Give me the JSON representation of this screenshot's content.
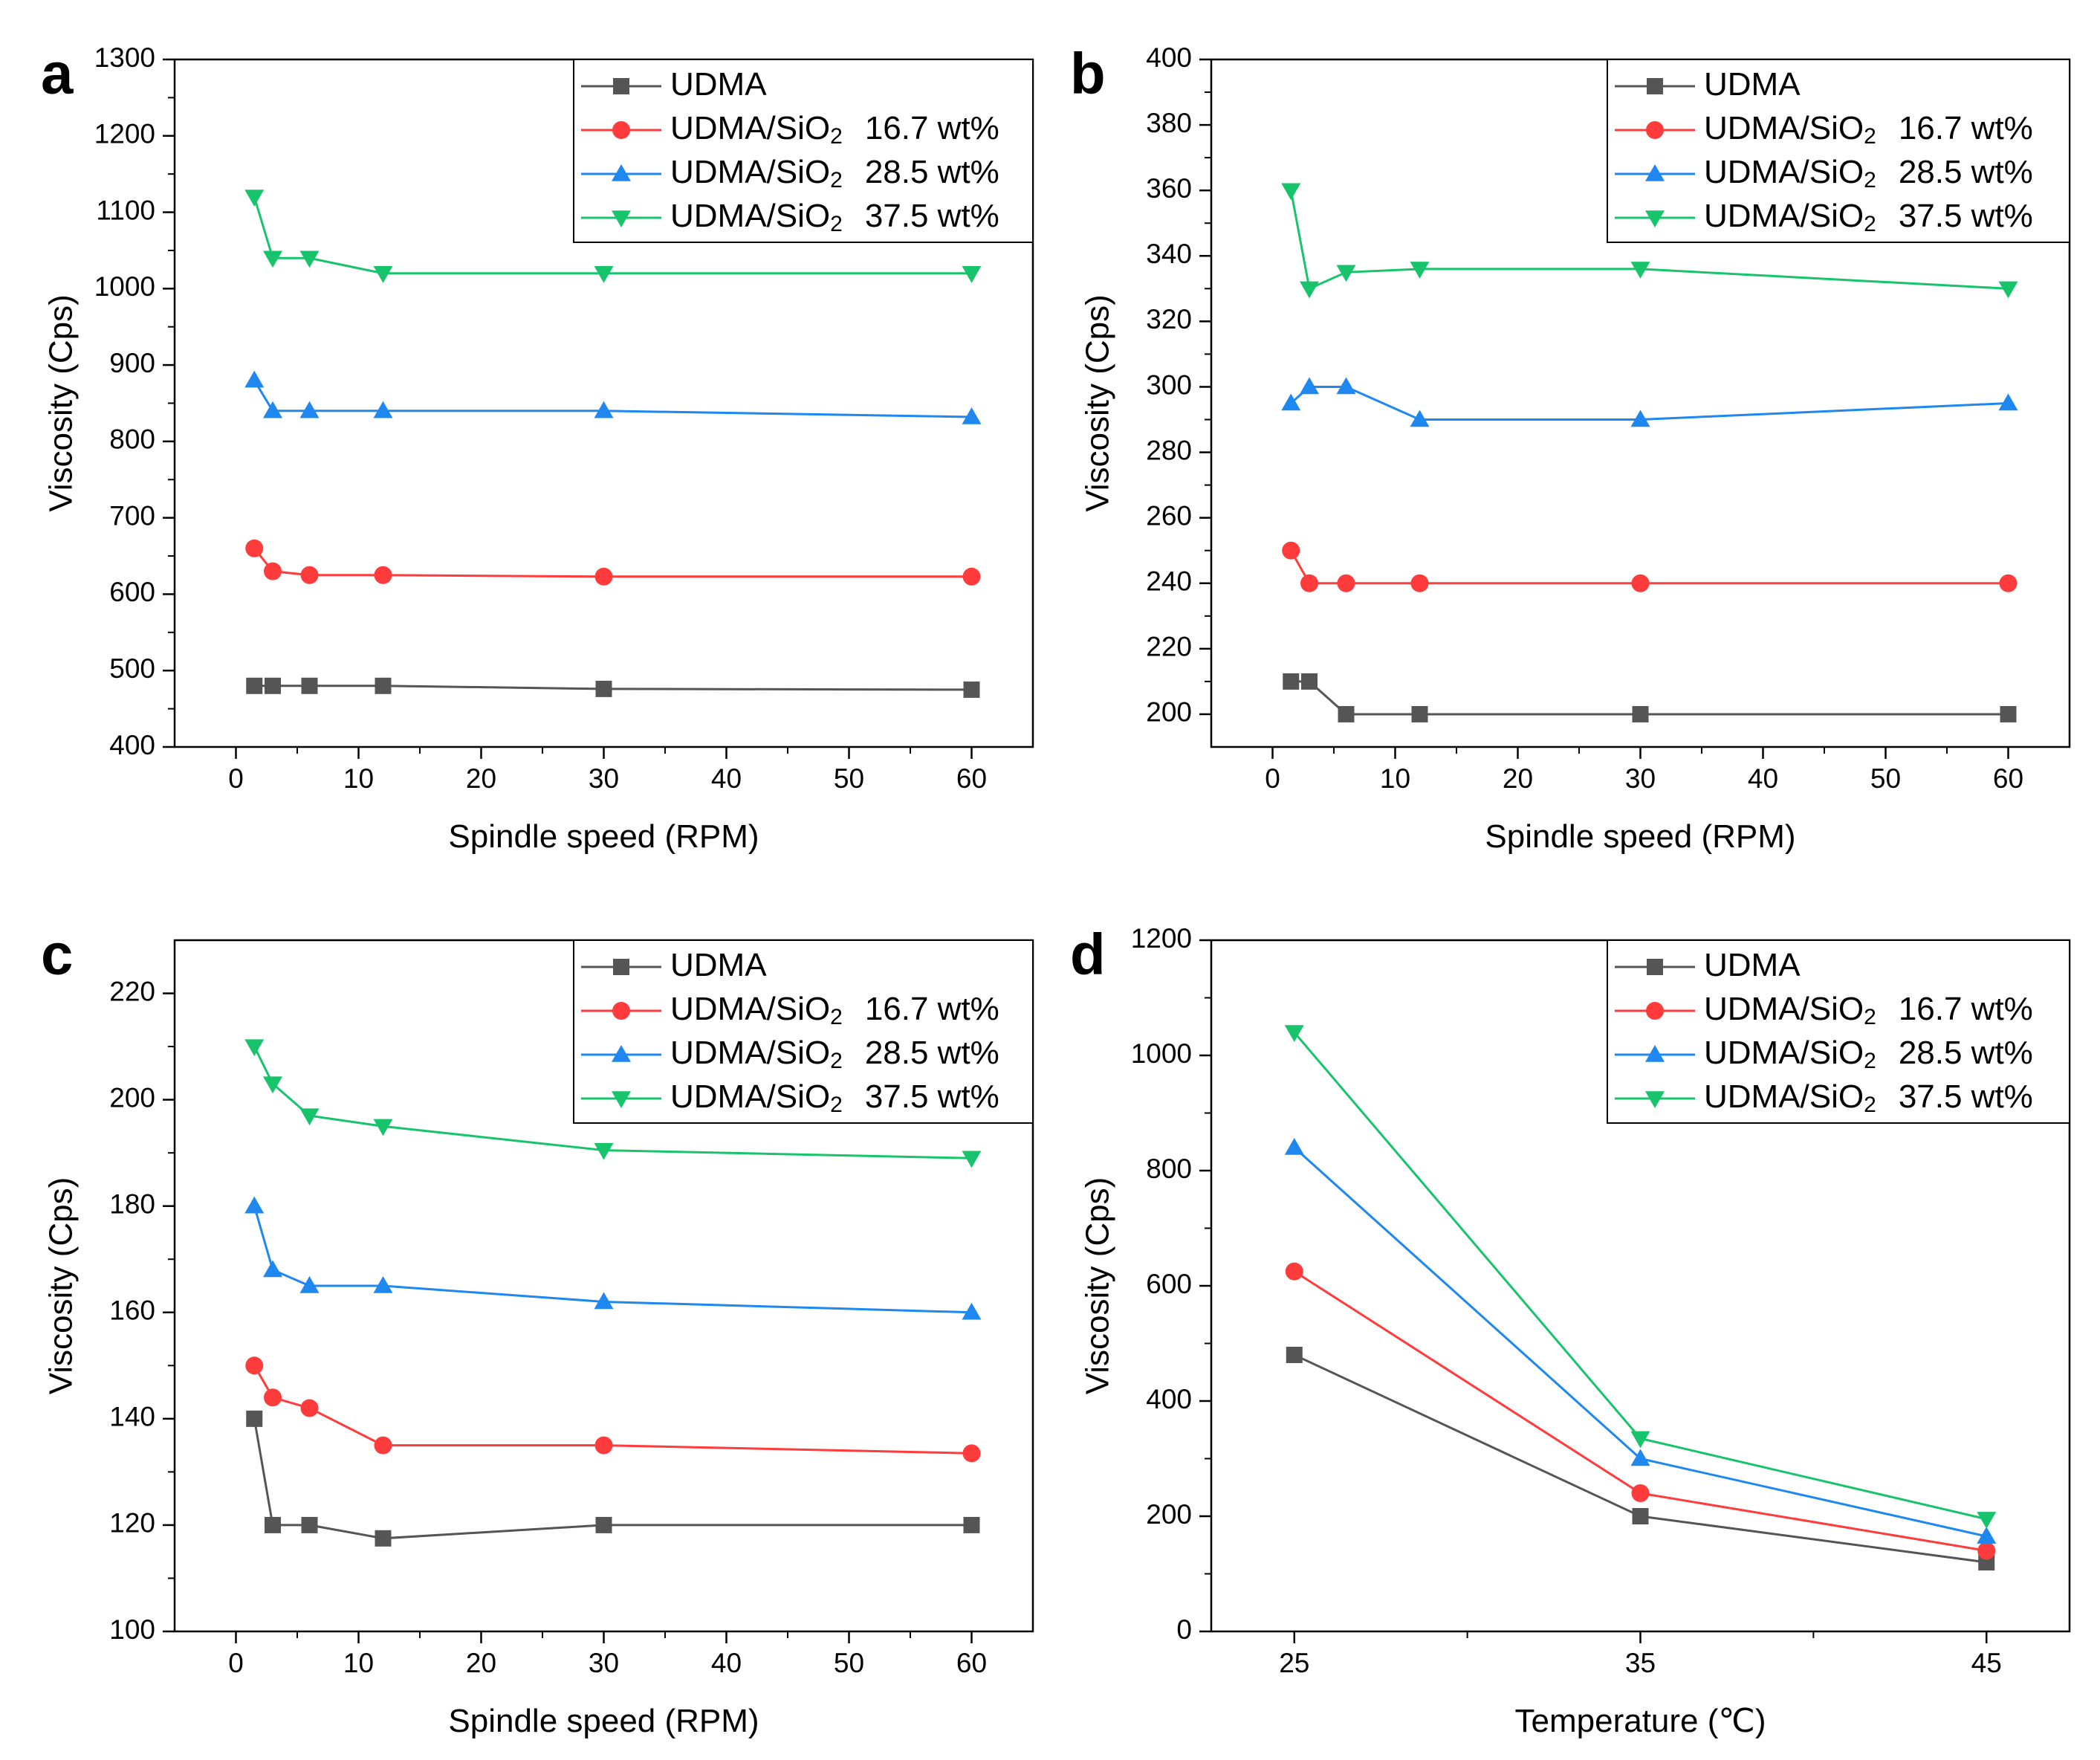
{
  "figure": {
    "series_styles": [
      {
        "color": "#555555",
        "marker": "square"
      },
      {
        "color": "#ff3b3b",
        "marker": "circle"
      },
      {
        "color": "#1e88f0",
        "marker": "triangle-up"
      },
      {
        "color": "#18c46b",
        "marker": "triangle-down"
      }
    ]
  },
  "chart_data": [
    {
      "panel": "a",
      "type": "line",
      "xlabel": "Spindle speed (RPM)",
      "ylabel": "Viscosity (Cps)",
      "xlim": [
        -5,
        65
      ],
      "ylim": [
        400,
        1300
      ],
      "xticks": [
        0,
        10,
        20,
        30,
        40,
        50,
        60
      ],
      "yticks": [
        400,
        500,
        600,
        700,
        800,
        900,
        1000,
        1100,
        1200,
        1300
      ],
      "legend_position": "top-right",
      "x": [
        1.5,
        3,
        6,
        12,
        30,
        60
      ],
      "series": [
        {
          "name": "UDMA",
          "name_main": "UDMA",
          "name_sub": "",
          "name_conc": "",
          "values": [
            480,
            480,
            480,
            480,
            476,
            475
          ]
        },
        {
          "name": "UDMA/SiO2 16.7 wt%",
          "name_main": "UDMA/SiO",
          "name_sub": "2",
          "name_conc": "16.7 wt%",
          "values": [
            660,
            630,
            625,
            625,
            623,
            623
          ]
        },
        {
          "name": "UDMA/SiO2 28.5 wt%",
          "name_main": "UDMA/SiO",
          "name_sub": "2",
          "name_conc": "28.5 wt%",
          "values": [
            880,
            840,
            840,
            840,
            840,
            832
          ]
        },
        {
          "name": "UDMA/SiO2 37.5 wt%",
          "name_main": "UDMA/SiO",
          "name_sub": "2",
          "name_conc": "37.5 wt%",
          "values": [
            1120,
            1040,
            1040,
            1020,
            1020,
            1020
          ]
        }
      ]
    },
    {
      "panel": "b",
      "type": "line",
      "xlabel": "Spindle speed (RPM)",
      "ylabel": "Viscosity (Cps)",
      "xlim": [
        -5,
        65
      ],
      "ylim": [
        190,
        400
      ],
      "xticks": [
        0,
        10,
        20,
        30,
        40,
        50,
        60
      ],
      "yticks": [
        200,
        220,
        240,
        260,
        280,
        300,
        320,
        340,
        360,
        380,
        400
      ],
      "legend_position": "top-right",
      "x": [
        1.5,
        3,
        6,
        12,
        30,
        60
      ],
      "series": [
        {
          "name": "UDMA",
          "name_main": "UDMA",
          "name_sub": "",
          "name_conc": "",
          "values": [
            210,
            210,
            200,
            200,
            200,
            200
          ]
        },
        {
          "name": "UDMA/SiO2 16.7 wt%",
          "name_main": "UDMA/SiO",
          "name_sub": "2",
          "name_conc": "16.7 wt%",
          "values": [
            250,
            240,
            240,
            240,
            240,
            240
          ]
        },
        {
          "name": "UDMA/SiO2 28.5 wt%",
          "name_main": "UDMA/SiO",
          "name_sub": "2",
          "name_conc": "28.5 wt%",
          "values": [
            295,
            300,
            300,
            290,
            290,
            295
          ]
        },
        {
          "name": "UDMA/SiO2 37.5 wt%",
          "name_main": "UDMA/SiO",
          "name_sub": "2",
          "name_conc": "37.5 wt%",
          "values": [
            360,
            330,
            335,
            336,
            336,
            330
          ]
        }
      ]
    },
    {
      "panel": "c",
      "type": "line",
      "xlabel": "Spindle speed (RPM)",
      "ylabel": "Viscosity (Cps)",
      "xlim": [
        -5,
        65
      ],
      "ylim": [
        100,
        230
      ],
      "xticks": [
        0,
        10,
        20,
        30,
        40,
        50,
        60
      ],
      "yticks": [
        100,
        120,
        140,
        160,
        180,
        200,
        220
      ],
      "legend_position": "top-right",
      "x": [
        1.5,
        3,
        6,
        12,
        30,
        60
      ],
      "series": [
        {
          "name": "UDMA",
          "name_main": "UDMA",
          "name_sub": "",
          "name_conc": "",
          "values": [
            140,
            120,
            120,
            117.5,
            120,
            120
          ]
        },
        {
          "name": "UDMA/SiO2 16.7 wt%",
          "name_main": "UDMA/SiO",
          "name_sub": "2",
          "name_conc": "16.7 wt%",
          "values": [
            150,
            144,
            142,
            135,
            135,
            133.5
          ]
        },
        {
          "name": "UDMA/SiO2 28.5 wt%",
          "name_main": "UDMA/SiO",
          "name_sub": "2",
          "name_conc": "28.5 wt%",
          "values": [
            180,
            168,
            165,
            165,
            162,
            160
          ]
        },
        {
          "name": "UDMA/SiO2 37.5 wt%",
          "name_main": "UDMA/SiO",
          "name_sub": "2",
          "name_conc": "37.5 wt%",
          "values": [
            210,
            203,
            197,
            195,
            190.5,
            189
          ]
        }
      ]
    },
    {
      "panel": "d",
      "type": "line",
      "xlabel": "Temperature (℃)",
      "ylabel": "Viscosity (Cps)",
      "xlim": [
        22.6,
        47.4
      ],
      "ylim": [
        0,
        1200
      ],
      "xticks": [
        25,
        35,
        45
      ],
      "yticks": [
        0,
        200,
        400,
        600,
        800,
        1000,
        1200
      ],
      "legend_position": "top-right",
      "x": [
        25,
        35,
        45
      ],
      "series": [
        {
          "name": "UDMA",
          "name_main": "UDMA",
          "name_sub": "",
          "name_conc": "",
          "values": [
            480,
            200,
            120
          ]
        },
        {
          "name": "UDMA/SiO2 16.7 wt%",
          "name_main": "UDMA/SiO",
          "name_sub": "2",
          "name_conc": "16.7 wt%",
          "values": [
            625,
            240,
            140
          ]
        },
        {
          "name": "UDMA/SiO2 28.5 wt%",
          "name_main": "UDMA/SiO",
          "name_sub": "2",
          "name_conc": "28.5 wt%",
          "values": [
            840,
            300,
            165
          ]
        },
        {
          "name": "UDMA/SiO2 37.5 wt%",
          "name_main": "UDMA/SiO",
          "name_sub": "2",
          "name_conc": "37.5 wt%",
          "values": [
            1040,
            335,
            195
          ]
        }
      ]
    }
  ]
}
